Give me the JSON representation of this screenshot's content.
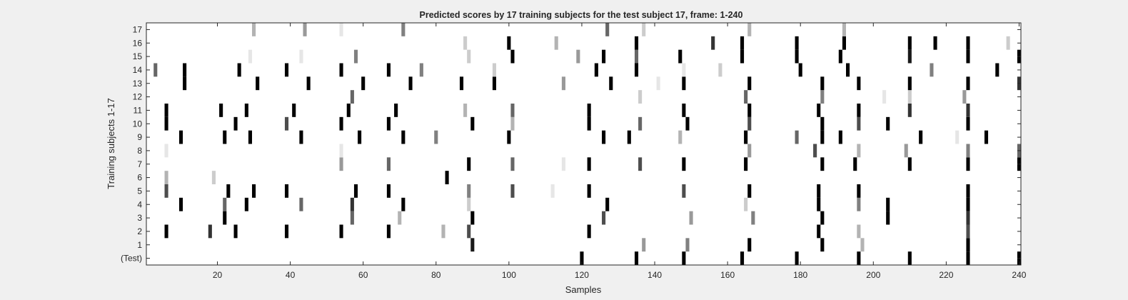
{
  "chart_data": {
    "type": "heatmap",
    "title": "Predicted scores by 17 training subjects for the test subject 17, frame: 1-240",
    "xlabel": "Samples",
    "ylabel": "Training subjects 1-17",
    "xlim": [
      0.5,
      240.5
    ],
    "x_ticks": [
      20,
      40,
      60,
      80,
      100,
      120,
      140,
      160,
      180,
      200,
      220,
      240
    ],
    "rows": [
      "(Test)",
      "1",
      "2",
      "3",
      "4",
      "5",
      "6",
      "7",
      "8",
      "9",
      "10",
      "11",
      "12",
      "13",
      "14",
      "15",
      "16",
      "17"
    ],
    "colormap": "gray, 1 = black, 0 = white",
    "colors": {
      "background": "#f0f0f0",
      "plot_area": "#ffffff",
      "axis": "#262626"
    },
    "cells": [
      {
        "row": "(Test)",
        "points": [
          [
            120,
            1
          ],
          [
            135,
            1
          ],
          [
            148,
            1
          ],
          [
            164,
            1
          ],
          [
            179,
            1
          ],
          [
            196,
            1
          ],
          [
            210,
            1
          ],
          [
            226,
            1
          ],
          [
            240,
            1
          ]
        ]
      },
      {
        "row": "1",
        "points": [
          [
            90,
            0.9
          ],
          [
            137,
            0.4
          ],
          [
            149,
            0.5
          ],
          [
            166,
            1
          ],
          [
            186,
            1
          ],
          [
            197,
            0.3
          ],
          [
            226,
            1
          ]
        ]
      },
      {
        "row": "2",
        "points": [
          [
            6,
            1
          ],
          [
            18,
            0.8
          ],
          [
            25,
            1
          ],
          [
            39,
            1
          ],
          [
            54,
            1
          ],
          [
            67,
            1
          ],
          [
            82,
            0.3
          ],
          [
            89,
            0.7
          ],
          [
            122,
            1
          ],
          [
            185,
            1
          ],
          [
            196,
            0.3
          ],
          [
            226,
            0.7
          ]
        ]
      },
      {
        "row": "3",
        "points": [
          [
            22,
            1
          ],
          [
            57,
            0.6
          ],
          [
            70,
            0.3
          ],
          [
            90,
            1
          ],
          [
            126,
            0.7
          ],
          [
            150,
            0.4
          ],
          [
            167,
            0.5
          ],
          [
            186,
            1
          ],
          [
            204,
            1
          ],
          [
            226,
            0.8
          ]
        ]
      },
      {
        "row": "4",
        "points": [
          [
            10,
            1
          ],
          [
            22,
            0.6
          ],
          [
            28,
            1
          ],
          [
            43,
            0.6
          ],
          [
            57,
            0.8
          ],
          [
            71,
            1
          ],
          [
            89,
            0.2
          ],
          [
            127,
            1
          ],
          [
            165,
            0.2
          ],
          [
            185,
            1
          ],
          [
            196,
            0.5
          ],
          [
            204,
            1
          ],
          [
            226,
            1
          ]
        ]
      },
      {
        "row": "5",
        "points": [
          [
            6,
            0.7
          ],
          [
            23,
            1
          ],
          [
            30,
            1
          ],
          [
            39,
            1
          ],
          [
            58,
            1
          ],
          [
            67,
            1
          ],
          [
            89,
            0.5
          ],
          [
            101,
            0.7
          ],
          [
            112,
            0.1
          ],
          [
            122,
            1
          ],
          [
            148,
            0.7
          ],
          [
            166,
            1
          ],
          [
            185,
            1
          ],
          [
            196,
            1
          ],
          [
            226,
            1
          ]
        ]
      },
      {
        "row": "6",
        "points": [
          [
            6,
            0.3
          ],
          [
            19,
            0.2
          ],
          [
            83,
            1
          ]
        ]
      },
      {
        "row": "7",
        "points": [
          [
            54,
            0.4
          ],
          [
            67,
            0.6
          ],
          [
            89,
            1
          ],
          [
            101,
            0.6
          ],
          [
            115,
            0.1
          ],
          [
            122,
            1
          ],
          [
            136,
            0.7
          ],
          [
            148,
            1
          ],
          [
            165,
            1
          ],
          [
            186,
            1
          ],
          [
            195,
            1
          ],
          [
            210,
            1
          ],
          [
            226,
            1
          ],
          [
            240,
            1
          ]
        ]
      },
      {
        "row": "8",
        "points": [
          [
            6,
            0.1
          ],
          [
            54,
            0.1
          ],
          [
            166,
            0.4
          ],
          [
            184,
            0.7
          ],
          [
            196,
            0.3
          ],
          [
            209,
            0.4
          ],
          [
            226,
            0.5
          ],
          [
            240,
            0.6
          ]
        ]
      },
      {
        "row": "9",
        "points": [
          [
            10,
            1
          ],
          [
            22,
            1
          ],
          [
            29,
            1
          ],
          [
            43,
            1
          ],
          [
            59,
            1
          ],
          [
            71,
            1
          ],
          [
            80,
            0.5
          ],
          [
            100,
            1
          ],
          [
            126,
            1
          ],
          [
            133,
            1
          ],
          [
            147,
            0.3
          ],
          [
            165,
            1
          ],
          [
            179,
            0.6
          ],
          [
            186,
            1
          ],
          [
            191,
            1
          ],
          [
            213,
            1
          ],
          [
            223,
            0.1
          ],
          [
            231,
            1
          ]
        ]
      },
      {
        "row": "10",
        "points": [
          [
            6,
            1
          ],
          [
            25,
            1
          ],
          [
            39,
            0.7
          ],
          [
            54,
            1
          ],
          [
            67,
            1
          ],
          [
            90,
            1
          ],
          [
            101,
            0.3
          ],
          [
            122,
            1
          ],
          [
            136,
            0.6
          ],
          [
            149,
            1
          ],
          [
            166,
            0.7
          ],
          [
            186,
            1
          ],
          [
            196,
            0.7
          ],
          [
            204,
            1
          ],
          [
            226,
            1
          ]
        ]
      },
      {
        "row": "11",
        "points": [
          [
            6,
            1
          ],
          [
            21,
            1
          ],
          [
            28,
            1
          ],
          [
            41,
            1
          ],
          [
            56,
            1
          ],
          [
            69,
            1
          ],
          [
            88,
            0.3
          ],
          [
            101,
            0.6
          ],
          [
            122,
            1
          ],
          [
            148,
            1
          ],
          [
            166,
            1
          ],
          [
            185,
            1
          ],
          [
            196,
            1
          ],
          [
            210,
            0.8
          ],
          [
            226,
            0.8
          ]
        ]
      },
      {
        "row": "12",
        "points": [
          [
            57,
            0.6
          ],
          [
            136,
            0.2
          ],
          [
            165,
            0.6
          ],
          [
            186,
            0.5
          ],
          [
            203,
            0.1
          ],
          [
            210,
            0.2
          ],
          [
            225,
            0.4
          ]
        ]
      },
      {
        "row": "13",
        "points": [
          [
            11,
            1
          ],
          [
            31,
            1
          ],
          [
            45,
            1
          ],
          [
            60,
            1
          ],
          [
            73,
            1
          ],
          [
            87,
            1
          ],
          [
            96,
            1
          ],
          [
            115,
            0.4
          ],
          [
            128,
            1
          ],
          [
            141,
            0.1
          ],
          [
            148,
            1
          ],
          [
            166,
            1
          ],
          [
            186,
            1
          ],
          [
            196,
            1
          ],
          [
            210,
            1
          ],
          [
            226,
            1
          ],
          [
            240,
            0.8
          ]
        ]
      },
      {
        "row": "14",
        "points": [
          [
            3,
            0.6
          ],
          [
            11,
            1
          ],
          [
            26,
            1
          ],
          [
            39,
            1
          ],
          [
            54,
            1
          ],
          [
            67,
            1
          ],
          [
            76,
            0.5
          ],
          [
            96,
            0.2
          ],
          [
            124,
            1
          ],
          [
            135,
            1
          ],
          [
            148,
            0.1
          ],
          [
            158,
            0.2
          ],
          [
            180,
            1
          ],
          [
            193,
            1
          ],
          [
            216,
            0.5
          ],
          [
            234,
            1
          ]
        ]
      },
      {
        "row": "15",
        "points": [
          [
            29,
            0.1
          ],
          [
            43,
            0.1
          ],
          [
            58,
            0.5
          ],
          [
            89,
            0.2
          ],
          [
            101,
            1
          ],
          [
            119,
            0.4
          ],
          [
            126,
            1
          ],
          [
            135,
            0.6
          ],
          [
            147,
            1
          ],
          [
            164,
            1
          ],
          [
            179,
            1
          ],
          [
            191,
            1
          ],
          [
            210,
            0.9
          ],
          [
            226,
            1
          ],
          [
            240,
            1
          ]
        ]
      },
      {
        "row": "16",
        "points": [
          [
            88,
            0.2
          ],
          [
            100,
            1
          ],
          [
            113,
            0.3
          ],
          [
            135,
            1
          ],
          [
            156,
            0.8
          ],
          [
            164,
            1
          ],
          [
            179,
            1
          ],
          [
            192,
            1
          ],
          [
            210,
            1
          ],
          [
            217,
            1
          ],
          [
            226,
            1
          ],
          [
            237,
            0.2
          ]
        ]
      },
      {
        "row": "17",
        "points": [
          [
            30,
            0.3
          ],
          [
            44,
            0.4
          ],
          [
            54,
            0.1
          ],
          [
            71,
            0.5
          ],
          [
            127,
            0.6
          ],
          [
            137,
            0.2
          ],
          [
            166,
            0.3
          ],
          [
            192,
            0.3
          ]
        ]
      }
    ]
  }
}
